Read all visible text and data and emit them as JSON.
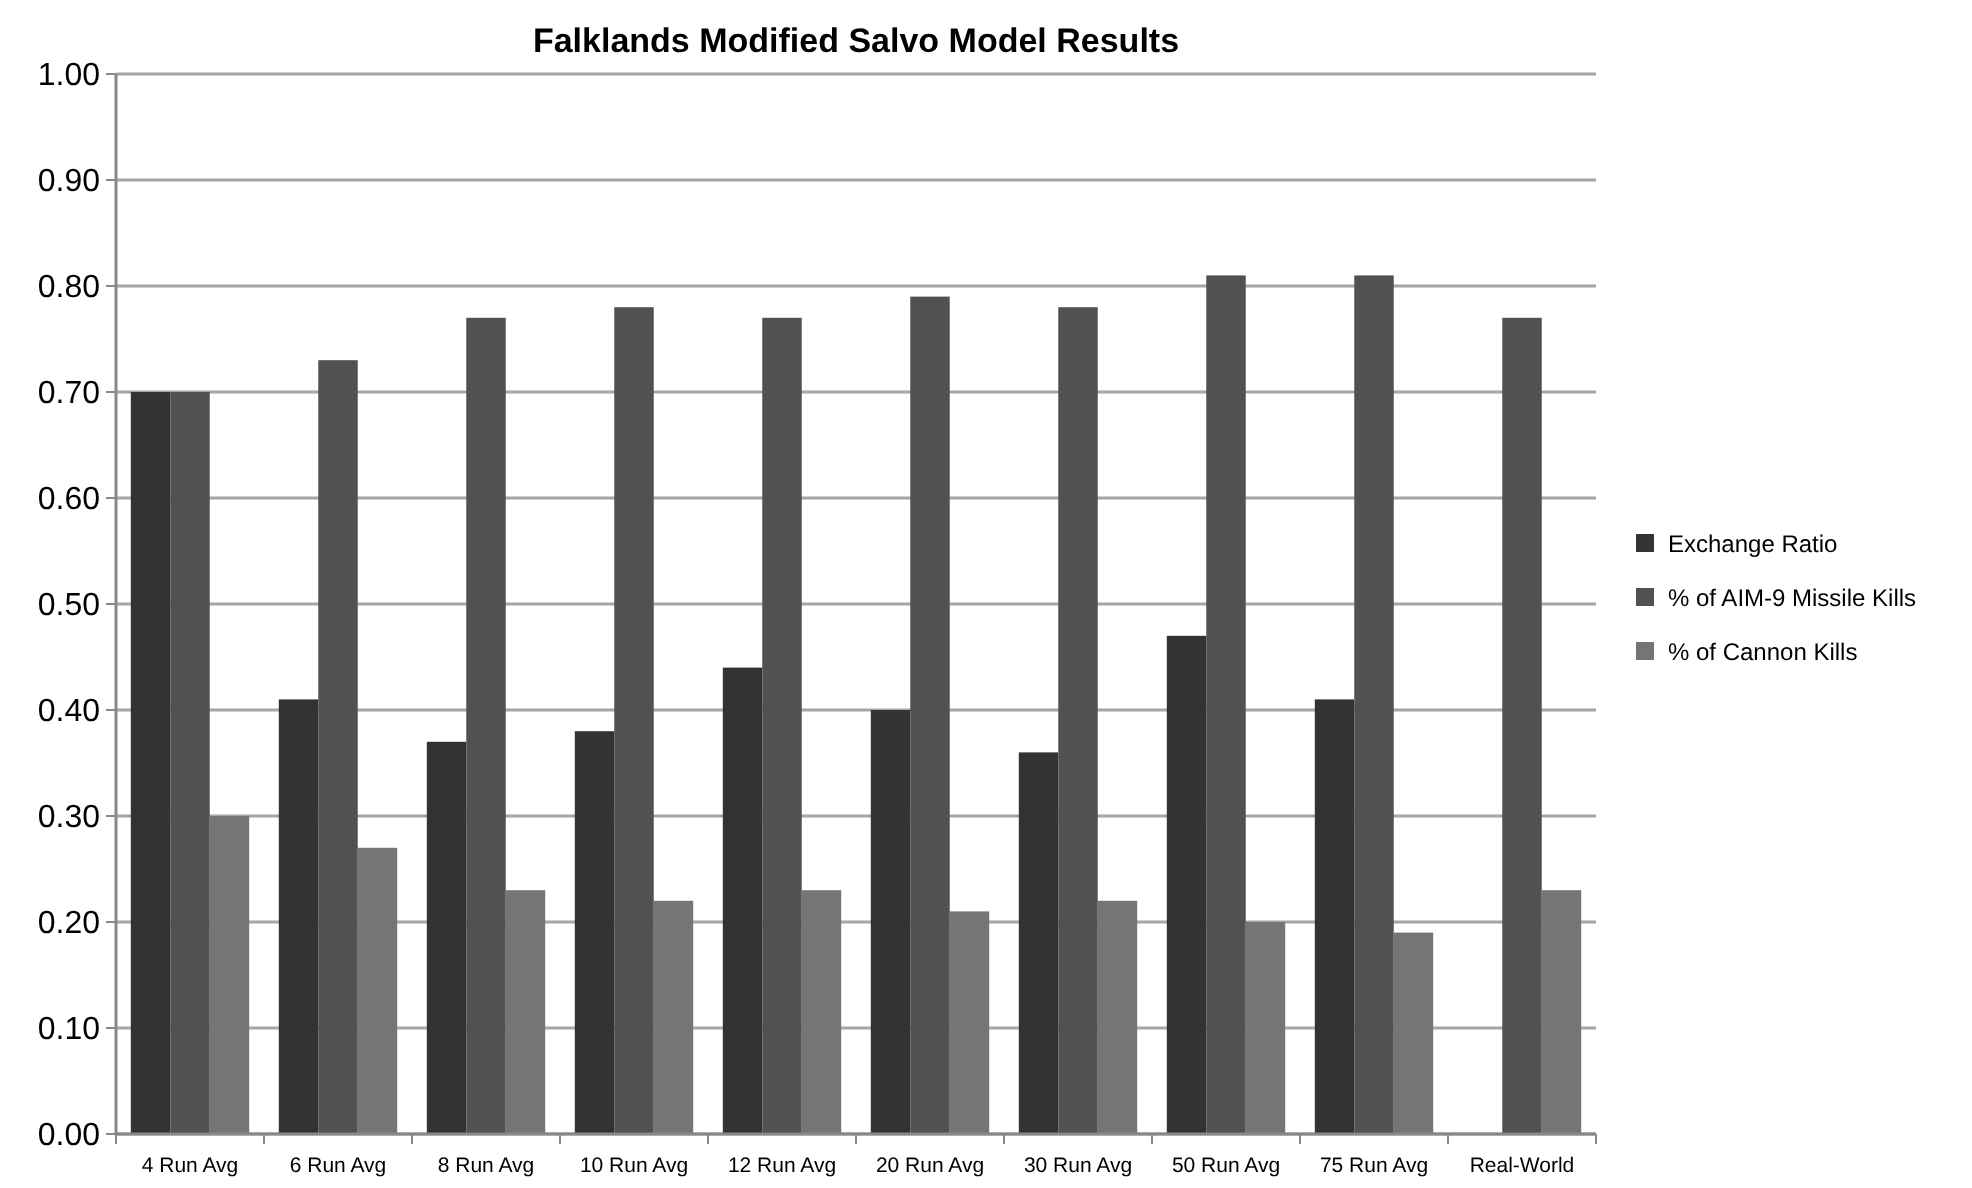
{
  "chart_data": {
    "type": "bar",
    "title": "Falklands Modified Salvo Model Results",
    "categories": [
      "4 Run Avg",
      "6 Run Avg",
      "8 Run Avg",
      "10 Run Avg",
      "12 Run Avg",
      "20 Run Avg",
      "30 Run Avg",
      "50 Run Avg",
      "75 Run Avg",
      "Real-World"
    ],
    "series": [
      {
        "name": "Exchange Ratio",
        "color": "#333333",
        "values": [
          0.7,
          0.41,
          0.37,
          0.38,
          0.44,
          0.4,
          0.36,
          0.47,
          0.41,
          null
        ]
      },
      {
        "name": "% of AIM-9 Missile Kills",
        "color": "#515151",
        "values": [
          0.7,
          0.73,
          0.77,
          0.78,
          0.77,
          0.79,
          0.78,
          0.81,
          0.81,
          0.77
        ]
      },
      {
        "name": "% of Cannon Kills",
        "color": "#757575",
        "values": [
          0.3,
          0.27,
          0.23,
          0.22,
          0.23,
          0.21,
          0.22,
          0.2,
          0.19,
          0.23
        ]
      }
    ],
    "ylim": [
      0,
      1
    ],
    "yticks": [
      {
        "value": 0,
        "label": "0.00"
      },
      {
        "value": 0.1,
        "label": "0.10"
      },
      {
        "value": 0.2,
        "label": "0.20"
      },
      {
        "value": 0.3,
        "label": "0.30"
      },
      {
        "value": 0.4,
        "label": "0.40"
      },
      {
        "value": 0.5,
        "label": "0.50"
      },
      {
        "value": 0.6,
        "label": "0.60"
      },
      {
        "value": 0.7,
        "label": "0.70"
      },
      {
        "value": 0.8,
        "label": "0.80"
      },
      {
        "value": 0.9,
        "label": "0.90"
      },
      {
        "value": 1,
        "label": "1.00"
      }
    ],
    "grid": "y",
    "legend": "right"
  }
}
